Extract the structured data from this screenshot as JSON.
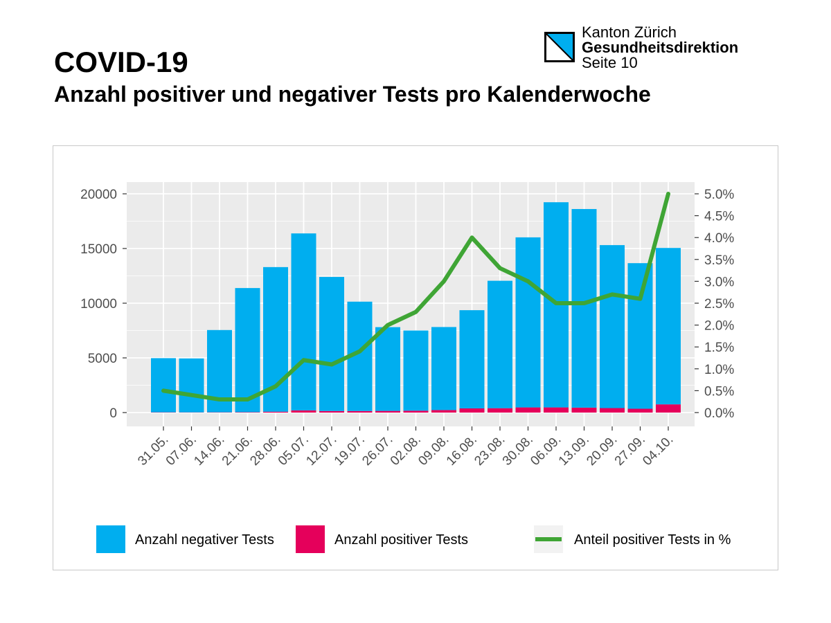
{
  "header": {
    "title": "COVID-19",
    "subtitle": "Anzahl positiver und negativer Tests pro Kalenderwoche"
  },
  "brand": {
    "canton": "Kanton Zürich",
    "department": "Gesundheitsdirektion",
    "page": "Seite 10",
    "logo_icon": "zurich-coat-of-arms-icon"
  },
  "colors": {
    "negative": "#00AEEF",
    "positive": "#E5005B",
    "share": "#3FA535",
    "panel": "#EBEBEB",
    "grid": "#FFFFFF"
  },
  "chart_data": {
    "type": "bar",
    "stacked": true,
    "categories": [
      "31.05.",
      "07.06.",
      "14.06.",
      "21.06.",
      "28.06.",
      "05.07.",
      "12.07.",
      "19.07.",
      "26.07.",
      "02.08.",
      "09.08.",
      "16.08.",
      "23.08.",
      "30.08.",
      "06.09.",
      "13.09.",
      "20.09.",
      "27.09.",
      "04.10."
    ],
    "series": [
      {
        "name": "Anzahl negativer Tests",
        "type": "bar",
        "axis": "left",
        "values": [
          4950,
          4930,
          7520,
          11350,
          13220,
          16180,
          12260,
          10000,
          7660,
          7330,
          7590,
          8980,
          11650,
          15550,
          18760,
          18160,
          14900,
          13310,
          14300
        ]
      },
      {
        "name": "Anzahl positiver Tests",
        "type": "bar",
        "axis": "left",
        "values": [
          25,
          20,
          25,
          35,
          80,
          200,
          140,
          140,
          150,
          170,
          230,
          380,
          400,
          470,
          470,
          450,
          410,
          350,
          750
        ]
      },
      {
        "name": "Anteil positiver Tests in %",
        "type": "line",
        "axis": "right",
        "values": [
          0.5,
          0.4,
          0.3,
          0.3,
          0.6,
          1.2,
          1.1,
          1.4,
          2.0,
          2.3,
          3.0,
          4.0,
          3.3,
          3.0,
          2.5,
          2.5,
          2.7,
          2.6,
          5.0
        ]
      }
    ],
    "y_left": {
      "range": [
        0,
        20000
      ],
      "ticks": [
        "0",
        "5000",
        "10000",
        "15000",
        "20000"
      ]
    },
    "y_right": {
      "range": [
        0,
        5.0
      ],
      "ticks": [
        "0.0%",
        "0.5%",
        "1.0%",
        "1.5%",
        "2.0%",
        "2.5%",
        "3.0%",
        "3.5%",
        "4.0%",
        "4.5%",
        "5.0%"
      ]
    },
    "grid": true,
    "legend": "bottom"
  }
}
